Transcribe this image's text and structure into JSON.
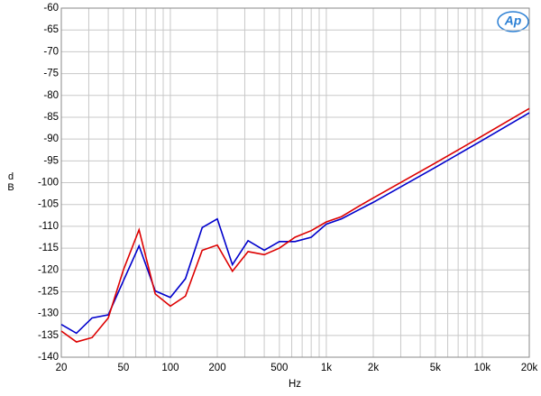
{
  "chart_data": {
    "type": "line",
    "xlabel": "Hz",
    "ylabel": "dB",
    "logo": "Ap",
    "xscale": "log",
    "grid": true,
    "xlim": [
      20,
      20000
    ],
    "ylim": [
      -140,
      -60
    ],
    "xticks": [
      20,
      50,
      100,
      200,
      500,
      {
        "value": 1000,
        "label": "1k"
      },
      {
        "value": 2000,
        "label": "2k"
      },
      {
        "value": 5000,
        "label": "5k"
      },
      {
        "value": 10000,
        "label": "10k"
      },
      {
        "value": 20000,
        "label": "20k"
      }
    ],
    "xgrid": [
      30,
      40,
      60,
      70,
      80,
      90,
      300,
      400,
      600,
      700,
      800,
      900,
      3000,
      4000,
      6000,
      7000,
      8000,
      9000
    ],
    "yticks": [
      -140,
      -135,
      -130,
      -125,
      -120,
      -115,
      -110,
      -105,
      -100,
      -95,
      -90,
      -85,
      -80,
      -75,
      -70,
      -65,
      -60
    ],
    "x": [
      20,
      25,
      31.5,
      40,
      50,
      63,
      80,
      100,
      125,
      160,
      200,
      250,
      315,
      400,
      500,
      630,
      800,
      1000,
      1250,
      1600,
      2000,
      5000,
      10000,
      20000
    ],
    "series": [
      {
        "name": "blue",
        "color": "#0000cc",
        "values": [
          -132.5,
          -134.5,
          -131,
          -130.3,
          -122.5,
          -114.5,
          -124.8,
          -126.3,
          -122,
          -110.3,
          -108.3,
          -118.8,
          -113.3,
          -115.5,
          -113.5,
          -113.5,
          -112.5,
          -109.5,
          -108.3,
          -106.3,
          -104.5,
          -96.5,
          -90.3,
          -84
        ]
      },
      {
        "name": "red",
        "color": "#dd0000",
        "values": [
          -134,
          -136.5,
          -135.5,
          -131,
          -120,
          -110.8,
          -125.5,
          -128.3,
          -126,
          -115.5,
          -114.3,
          -120.3,
          -115.8,
          -116.5,
          -115,
          -112.5,
          -111,
          -109,
          -107.8,
          -105.5,
          -103.5,
          -95.5,
          -89.3,
          -83
        ]
      }
    ]
  }
}
